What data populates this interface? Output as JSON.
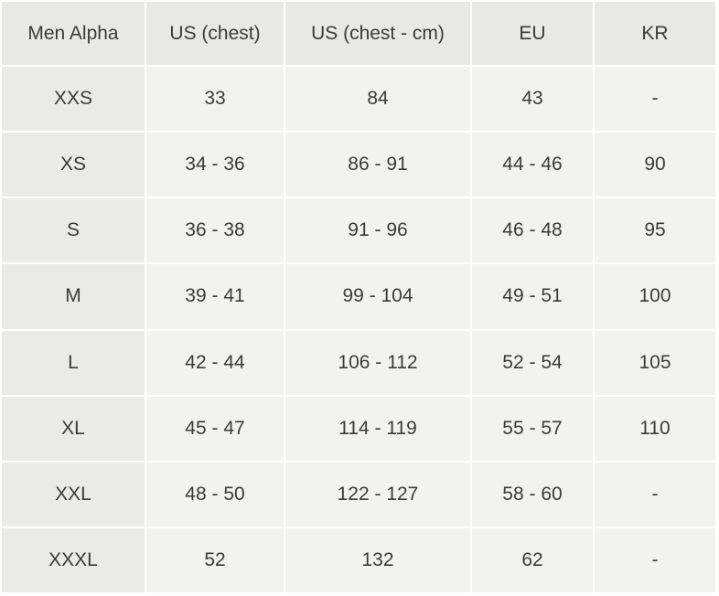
{
  "table": {
    "headers": [
      "Men Alpha",
      "US (chest)",
      "US (chest - cm)",
      "EU",
      "KR"
    ],
    "rows": [
      [
        "XXS",
        "33",
        "84",
        "43",
        "-"
      ],
      [
        "XS",
        "34 - 36",
        "86 - 91",
        "44 - 46",
        "90"
      ],
      [
        "S",
        "36 - 38",
        "91 - 96",
        "46 - 48",
        "95"
      ],
      [
        "M",
        "39 - 41",
        "99 - 104",
        "49 - 51",
        "100"
      ],
      [
        "L",
        "42 - 44",
        "106 - 112",
        "52 - 54",
        "105"
      ],
      [
        "XL",
        "45 - 47",
        "114 - 119",
        "55 - 57",
        "110"
      ],
      [
        "XXL",
        "48 - 50",
        "122 - 127",
        "58 - 60",
        "-"
      ],
      [
        "XXXL",
        "52",
        "132",
        "62",
        "-"
      ]
    ]
  },
  "colors": {
    "header_bg": "#e8e8e7",
    "cell_bg": "#f2f2f1",
    "label_cell_bg": "#eaebe7",
    "text": "#3b3b3b",
    "border": "#ffffff"
  }
}
